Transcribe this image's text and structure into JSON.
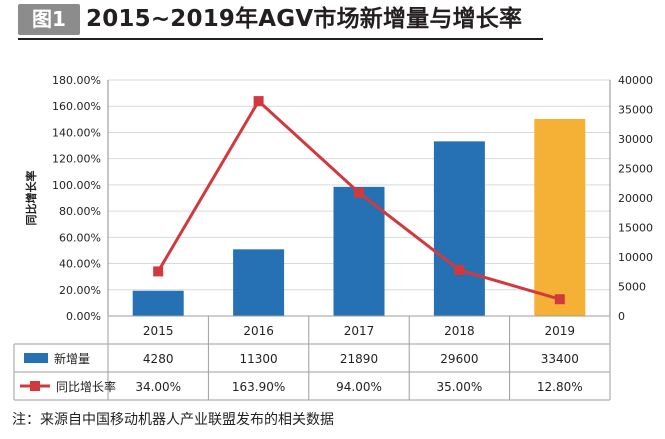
{
  "figure": {
    "badge": "图1",
    "title": "2015~2019年AGV市场新增量与增长率"
  },
  "note": "注：来源自中国移动机器人产业联盟发布的相关数据",
  "chart_data": {
    "type": "bar+line",
    "categories": [
      "2015",
      "2016",
      "2017",
      "2018",
      "2019"
    ],
    "left_axis": {
      "label": "同比增长率",
      "range": [
        0,
        180
      ],
      "ticks": [
        "0.00%",
        "20.00%",
        "40.00%",
        "60.00%",
        "80.00%",
        "100.00%",
        "120.00%",
        "140.00%",
        "160.00%",
        "180.00%"
      ]
    },
    "right_axis": {
      "range": [
        0,
        40000
      ],
      "ticks": [
        "0",
        "5000",
        "10000",
        "15000",
        "20000",
        "25000",
        "30000",
        "35000",
        "40000"
      ]
    },
    "series": [
      {
        "name": "新增量",
        "type": "bar",
        "axis": "right",
        "values": [
          4280,
          11300,
          21890,
          29600,
          33400
        ],
        "labels": [
          "4280",
          "11300",
          "21890",
          "29600",
          "33400"
        ]
      },
      {
        "name": "同比增长率",
        "type": "line",
        "axis": "left",
        "values": [
          34.0,
          163.9,
          94.0,
          35.0,
          12.8
        ],
        "labels": [
          "34.00%",
          "163.90%",
          "94.00%",
          "35.00%",
          "12.80%"
        ]
      }
    ],
    "colors": {
      "bar": "#2571b3",
      "bar_highlight": "#f5b136",
      "line": "#d2393e",
      "grid": "#d9d9d9"
    },
    "highlight_index": 4
  }
}
